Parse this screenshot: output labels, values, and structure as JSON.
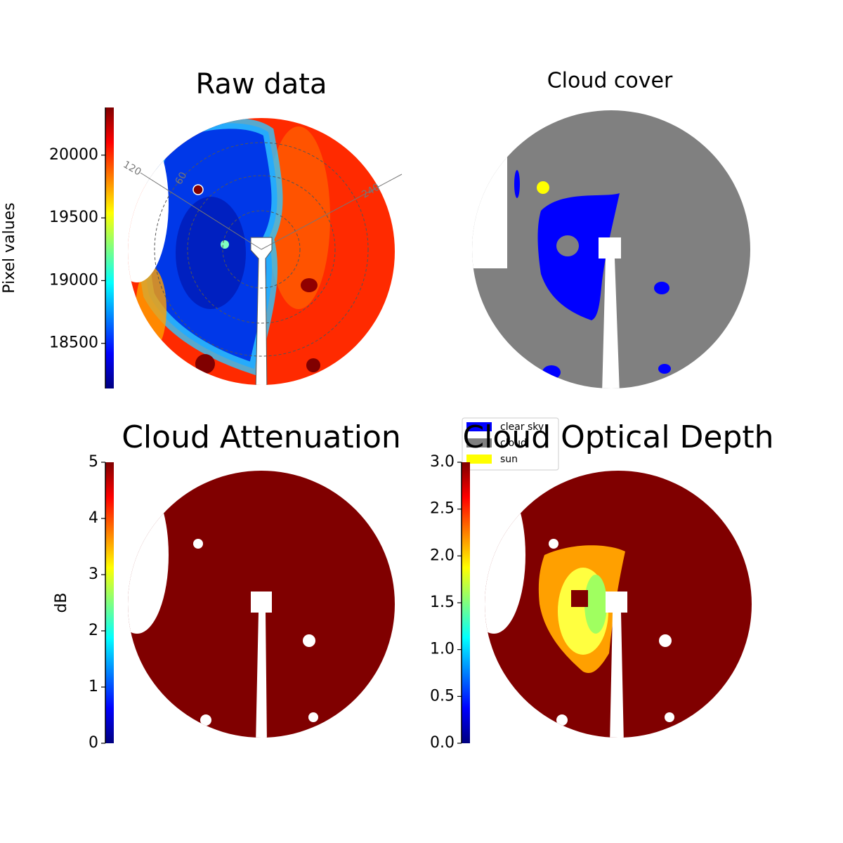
{
  "chart_data": [
    {
      "type": "image",
      "title": "Raw data",
      "ylabel": "Pixel values",
      "ylim": [
        18140,
        20380
      ],
      "yticks": [
        18500,
        19000,
        19500,
        20000
      ],
      "annotations": [
        "120",
        "60",
        "240"
      ]
    },
    {
      "type": "image",
      "title": "Cloud cover",
      "legend": "lower left",
      "series": [
        {
          "name": "clear sky",
          "color": "#0000ff"
        },
        {
          "name": "cloud",
          "color": "#808080"
        },
        {
          "name": "sun",
          "color": "#ffff00"
        }
      ]
    },
    {
      "type": "image",
      "title": "Cloud Attenuation",
      "ylabel": "dB",
      "ylim": [
        0,
        5
      ],
      "yticks": [
        0,
        1,
        2,
        3,
        4,
        5
      ]
    },
    {
      "type": "image",
      "title": "Cloud Optical Depth",
      "ylim": [
        0,
        3
      ],
      "yticks": [
        {
          "value": 0,
          "label": "0.0"
        },
        0.5,
        {
          "value": 1,
          "label": "1.0"
        },
        1.5,
        {
          "value": 2,
          "label": "2.0"
        },
        2.5,
        {
          "value": 3,
          "label": "3.0"
        }
      ]
    }
  ]
}
